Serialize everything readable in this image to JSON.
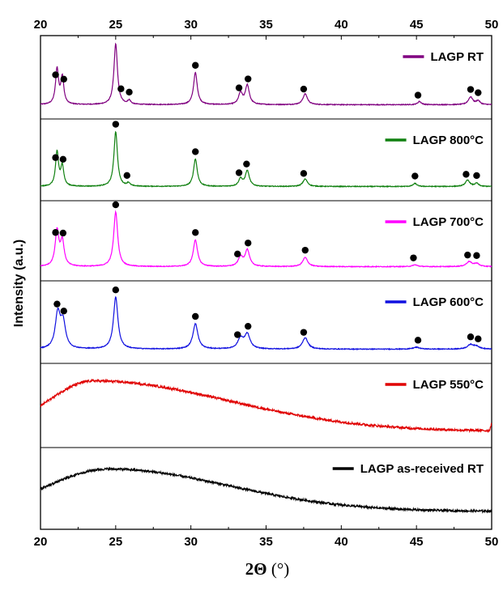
{
  "chart_data": {
    "type": "line",
    "xlabel_main": "2Θ",
    "xlabel_unit": " (°)",
    "ylabel": "Intensity (a.u.)",
    "xlim": [
      20,
      50
    ],
    "xticks": [
      20,
      25,
      30,
      35,
      40,
      45,
      50
    ],
    "grid": false,
    "legend_placement": "top-right of each panel",
    "series": [
      {
        "name": "LAGP RT",
        "color": "#800080",
        "pattern": "crystalline",
        "peaks": [
          {
            "x": 21.1,
            "h": 0.55,
            "w": 0.12
          },
          {
            "x": 21.45,
            "h": 0.42,
            "w": 0.12
          },
          {
            "x": 25.0,
            "h": 0.95,
            "w": 0.14
          },
          {
            "x": 25.9,
            "h": 0.06,
            "w": 0.12
          },
          {
            "x": 30.3,
            "h": 0.5,
            "w": 0.15
          },
          {
            "x": 33.3,
            "h": 0.18,
            "w": 0.15
          },
          {
            "x": 33.75,
            "h": 0.3,
            "w": 0.16
          },
          {
            "x": 37.6,
            "h": 0.17,
            "w": 0.18
          },
          {
            "x": 45.2,
            "h": 0.05,
            "w": 0.15
          },
          {
            "x": 48.6,
            "h": 0.12,
            "w": 0.18
          },
          {
            "x": 49.1,
            "h": 0.06,
            "w": 0.15
          }
        ],
        "marker_x": [
          21.0,
          21.55,
          25.35,
          25.9,
          30.3,
          33.2,
          33.8,
          37.5,
          45.1,
          48.6,
          49.1
        ]
      },
      {
        "name": "LAGP 800°C",
        "color": "#108010",
        "pattern": "crystalline",
        "peaks": [
          {
            "x": 21.1,
            "h": 0.55,
            "w": 0.12
          },
          {
            "x": 21.45,
            "h": 0.32,
            "w": 0.12
          },
          {
            "x": 25.0,
            "h": 0.88,
            "w": 0.14
          },
          {
            "x": 25.85,
            "h": 0.05,
            "w": 0.12
          },
          {
            "x": 30.3,
            "h": 0.44,
            "w": 0.15
          },
          {
            "x": 33.3,
            "h": 0.12,
            "w": 0.15
          },
          {
            "x": 33.75,
            "h": 0.25,
            "w": 0.16
          },
          {
            "x": 37.6,
            "h": 0.12,
            "w": 0.18
          },
          {
            "x": 44.9,
            "h": 0.05,
            "w": 0.15
          },
          {
            "x": 48.4,
            "h": 0.1,
            "w": 0.18
          },
          {
            "x": 49.0,
            "h": 0.05,
            "w": 0.15
          }
        ],
        "marker_x": [
          21.0,
          21.5,
          25.0,
          25.75,
          30.3,
          33.2,
          33.7,
          37.5,
          44.9,
          48.3,
          49.0
        ]
      },
      {
        "name": "LAGP 700°C",
        "color": "#ff00ff",
        "pattern": "crystalline",
        "peaks": [
          {
            "x": 21.1,
            "h": 0.58,
            "w": 0.15
          },
          {
            "x": 21.45,
            "h": 0.4,
            "w": 0.15
          },
          {
            "x": 25.0,
            "h": 0.9,
            "w": 0.16
          },
          {
            "x": 30.3,
            "h": 0.44,
            "w": 0.17
          },
          {
            "x": 33.3,
            "h": 0.15,
            "w": 0.18
          },
          {
            "x": 33.75,
            "h": 0.27,
            "w": 0.18
          },
          {
            "x": 37.6,
            "h": 0.15,
            "w": 0.2
          },
          {
            "x": 44.9,
            "h": 0.03,
            "w": 0.2
          },
          {
            "x": 48.5,
            "h": 0.08,
            "w": 0.22
          },
          {
            "x": 49.0,
            "h": 0.05,
            "w": 0.2
          }
        ],
        "marker_x": [
          21.0,
          21.5,
          25.0,
          30.3,
          33.1,
          33.8,
          37.6,
          44.8,
          48.4,
          49.0
        ]
      },
      {
        "name": "LAGP 600°C",
        "color": "#1010e0",
        "pattern": "crystalline",
        "peaks": [
          {
            "x": 21.15,
            "h": 0.55,
            "w": 0.2
          },
          {
            "x": 21.5,
            "h": 0.4,
            "w": 0.2
          },
          {
            "x": 25.0,
            "h": 0.82,
            "w": 0.18
          },
          {
            "x": 30.3,
            "h": 0.4,
            "w": 0.2
          },
          {
            "x": 33.3,
            "h": 0.16,
            "w": 0.22
          },
          {
            "x": 33.75,
            "h": 0.23,
            "w": 0.22
          },
          {
            "x": 37.6,
            "h": 0.18,
            "w": 0.22
          },
          {
            "x": 45.0,
            "h": 0.03,
            "w": 0.25
          },
          {
            "x": 48.6,
            "h": 0.07,
            "w": 0.25
          },
          {
            "x": 49.0,
            "h": 0.04,
            "w": 0.22
          }
        ],
        "marker_x": [
          21.1,
          21.55,
          25.0,
          30.3,
          33.1,
          33.8,
          37.5,
          45.1,
          48.6,
          49.1
        ]
      },
      {
        "name": "LAGP 550°C",
        "color": "#e00000",
        "pattern": "amorphous",
        "hump": {
          "center": 23.5,
          "height": 0.78,
          "base": 0.05,
          "sigma_left": 3.0,
          "sigma_right": 9.0,
          "noise": 0.018
        },
        "end_spike": 0.12
      },
      {
        "name": "LAGP as-received RT",
        "color": "#000000",
        "pattern": "amorphous",
        "hump": {
          "center": 24.5,
          "height": 0.68,
          "base": 0.08,
          "sigma_left": 4.0,
          "sigma_right": 8.0,
          "noise": 0.018
        },
        "end_spike": 0
      }
    ]
  }
}
